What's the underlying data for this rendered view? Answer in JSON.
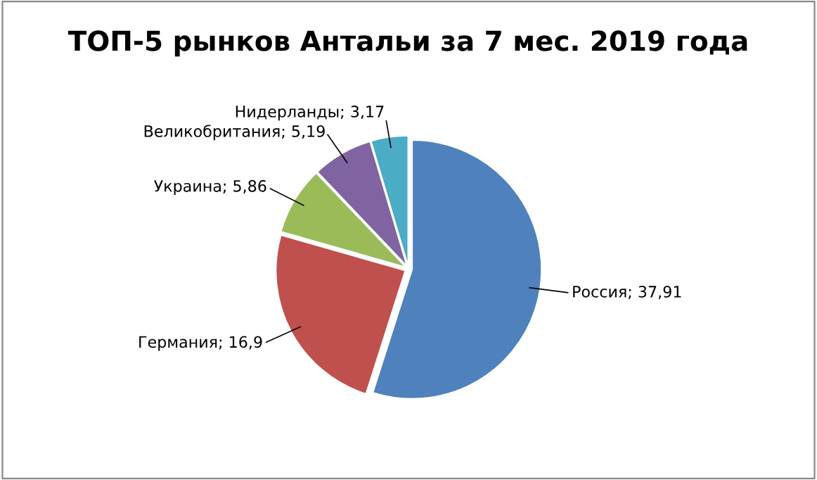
{
  "chart_data": {
    "type": "pie",
    "title": "ТОП-5 рынков Антальи за 7 мес. 2019 года",
    "categories": [
      "Россия",
      "Германия",
      "Украина",
      "Великобритания",
      "Нидерланды"
    ],
    "values": [
      37.91,
      16.9,
      5.86,
      5.19,
      3.17
    ],
    "value_labels": [
      "37,91",
      "16,9",
      "5,86",
      "5,19",
      "3,17"
    ],
    "colors": [
      "#4f81bd",
      "#c0504d",
      "#9bbb59",
      "#8064a2",
      "#4bacc6"
    ]
  }
}
